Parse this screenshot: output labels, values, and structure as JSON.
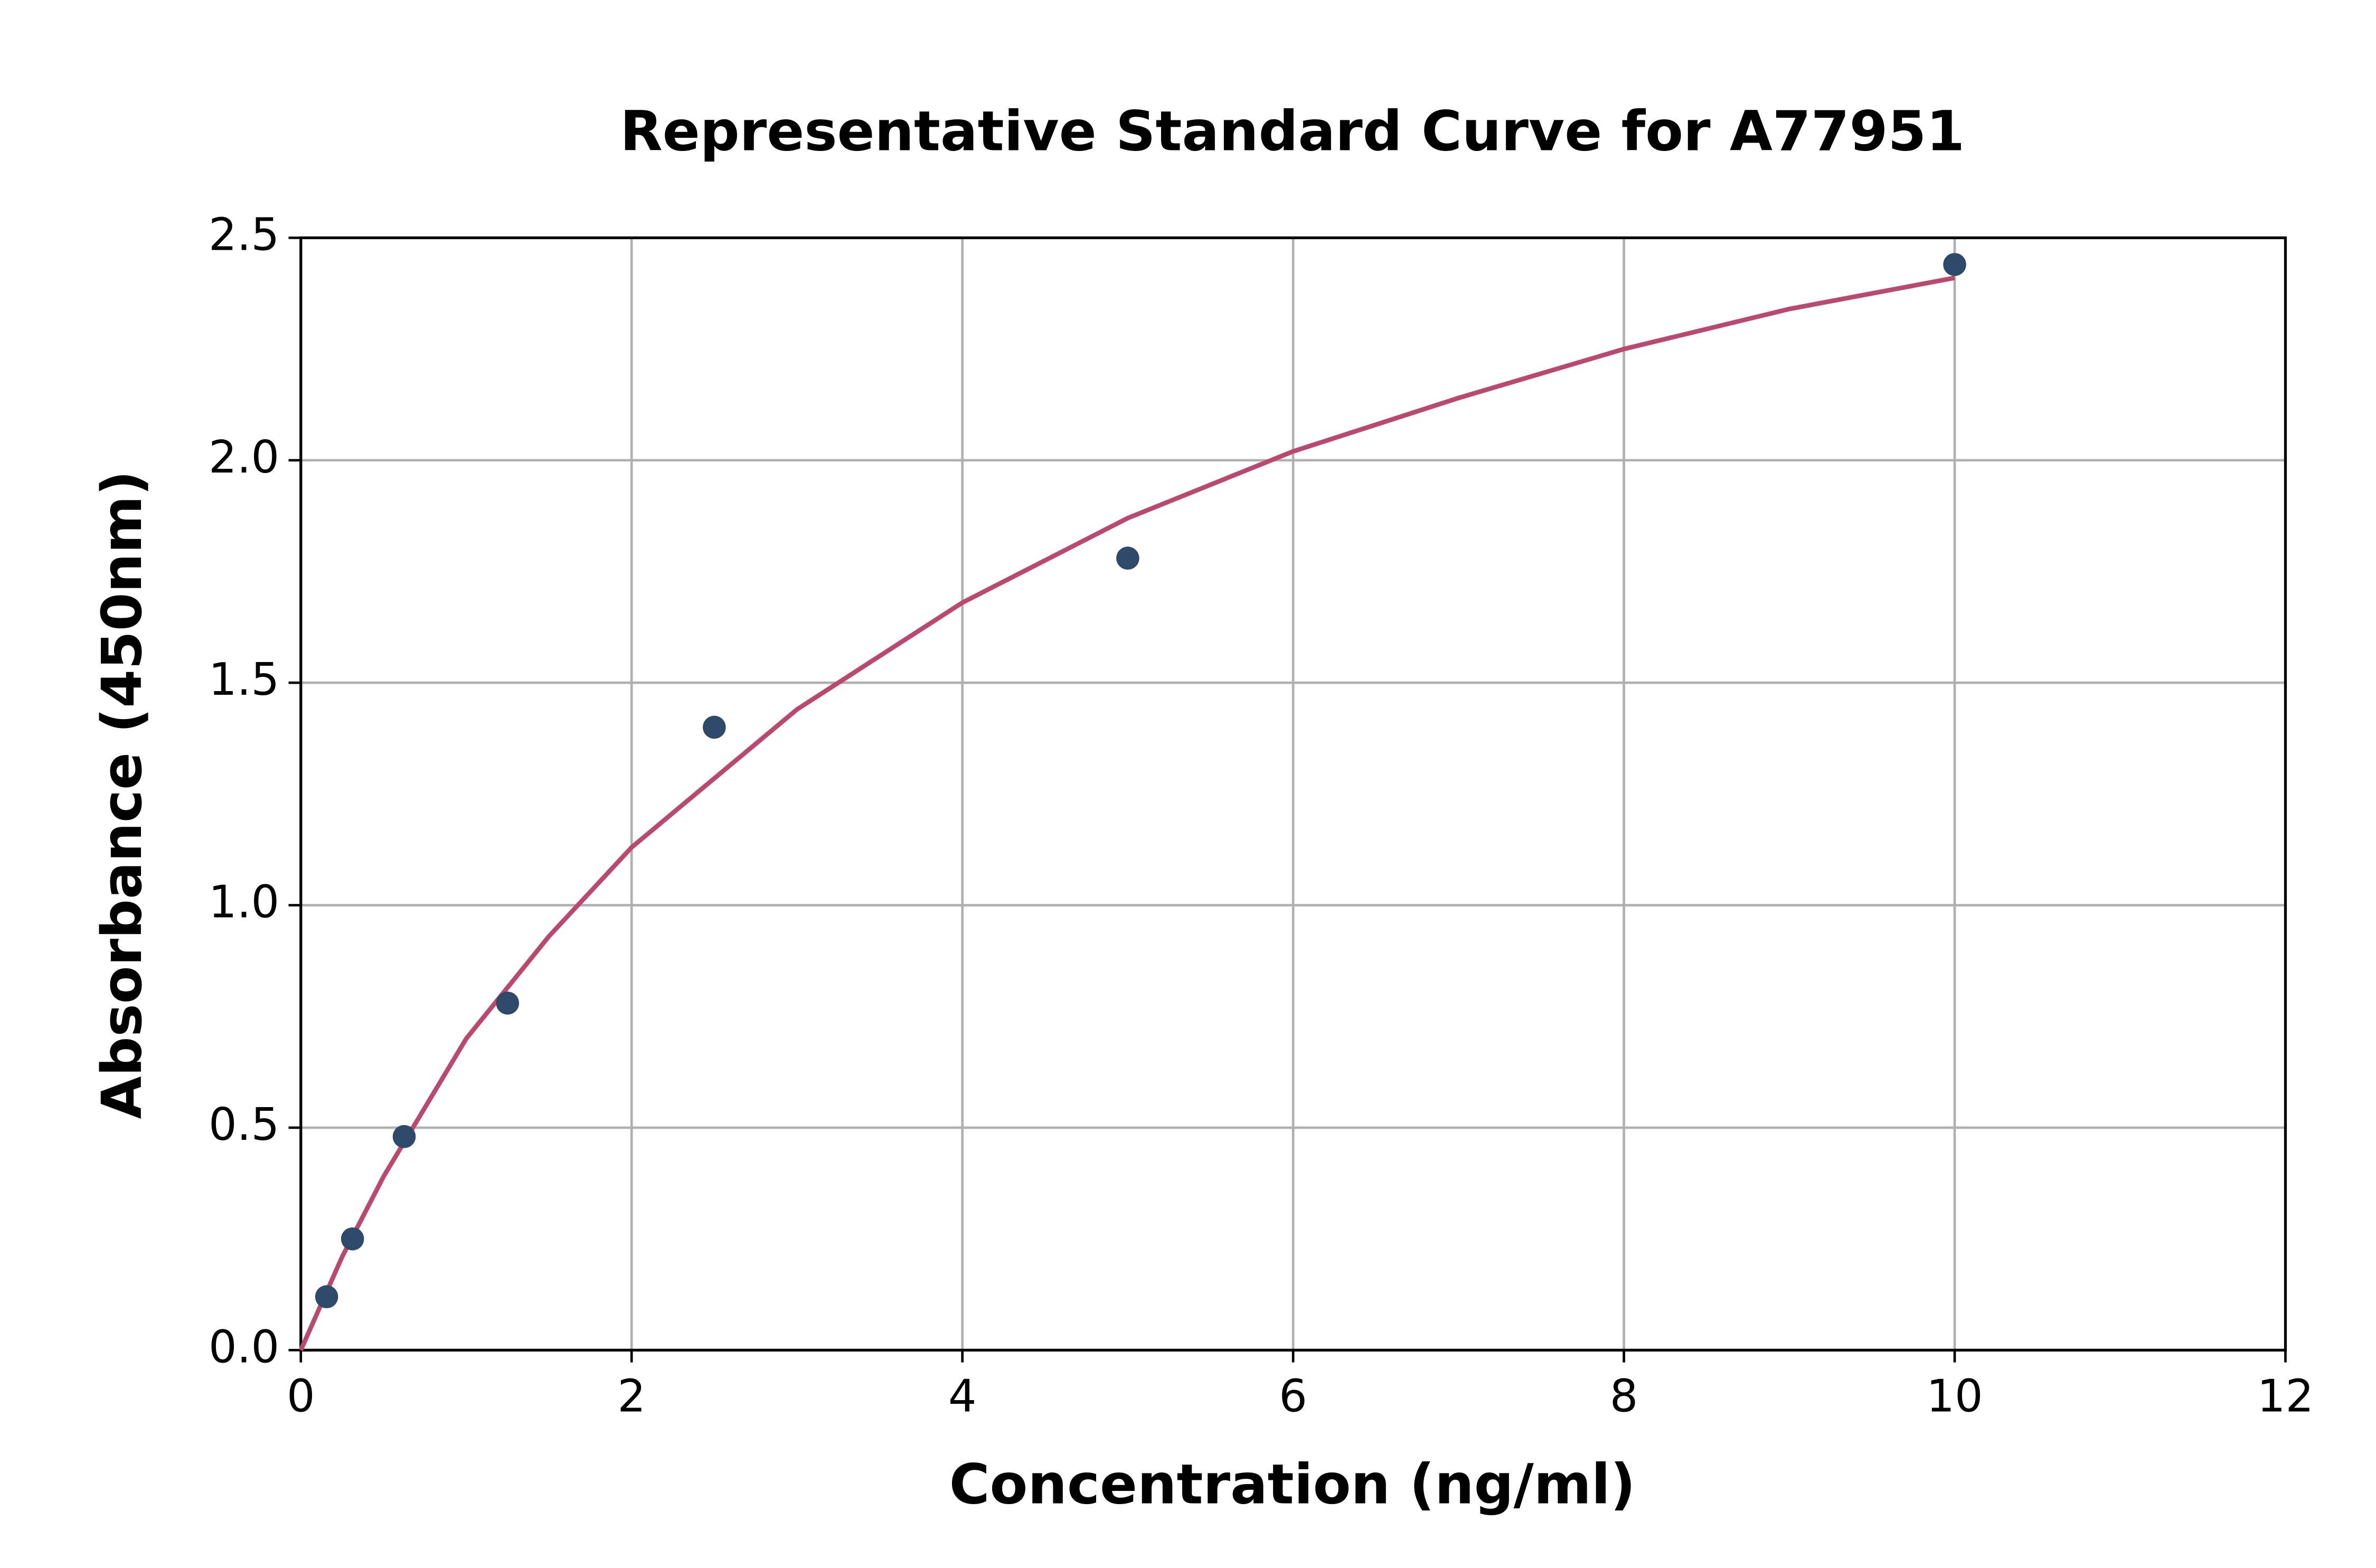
{
  "chart_data": {
    "type": "scatter",
    "title": "Representative Standard Curve for A77951",
    "xlabel": "Concentration (ng/ml)",
    "ylabel": "Absorbance (450nm)",
    "xlim": [
      0,
      12
    ],
    "ylim": [
      0,
      2.5
    ],
    "xticks": [
      0,
      2,
      4,
      6,
      8,
      10,
      12
    ],
    "yticks": [
      {
        "value": 0,
        "label": "0.0"
      },
      0.5,
      {
        "value": 1,
        "label": "1.0"
      },
      1.5,
      {
        "value": 2,
        "label": "2.0"
      },
      2.5
    ],
    "grid": true,
    "series": [
      {
        "type": "scatter",
        "color": "#2e4a6b",
        "x": [
          0.156,
          0.3125,
          0.625,
          1.25,
          2.5,
          5,
          10
        ],
        "values": [
          0.12,
          0.25,
          0.48,
          0.78,
          1.4,
          1.78,
          2.44
        ]
      },
      {
        "type": "line",
        "color": "#b94a6e",
        "x": [
          0,
          0.25,
          0.5,
          1,
          1.5,
          2,
          3,
          4,
          5,
          6,
          7,
          8,
          9,
          10
        ],
        "values": [
          0,
          0.21,
          0.39,
          0.7,
          0.93,
          1.13,
          1.44,
          1.68,
          1.87,
          2.02,
          2.14,
          2.25,
          2.34,
          2.41
        ]
      }
    ]
  }
}
